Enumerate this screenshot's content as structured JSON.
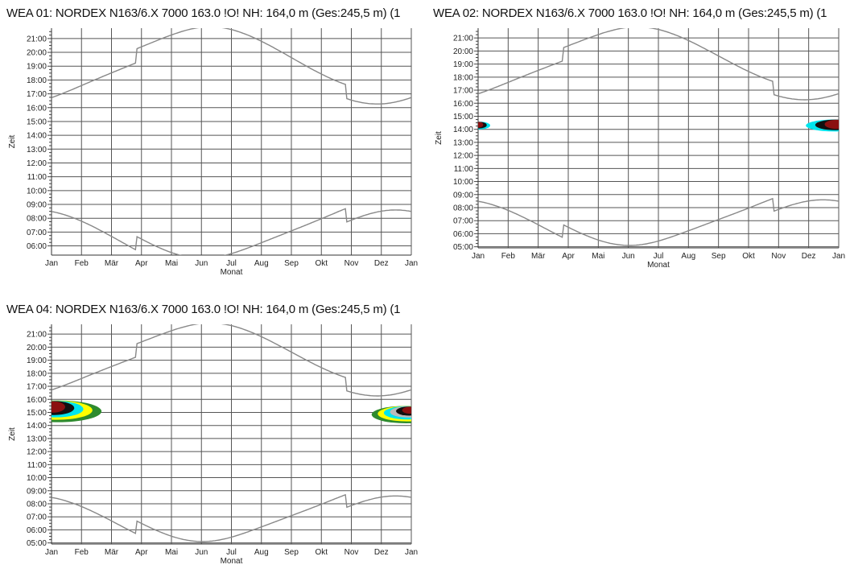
{
  "chart_data": [
    {
      "type": "area",
      "title": "WEA 01: NORDEX N163/6.X 7000 163.0 !O! NH: 164,0 m (Ges:245,5 m) (1",
      "xlabel": "Monat",
      "ylabel": "Zeit",
      "categories": [
        "Jan",
        "Feb",
        "Mär",
        "Apr",
        "Mai",
        "Jun",
        "Jul",
        "Aug",
        "Sep",
        "Okt",
        "Nov",
        "Dez",
        "Jan"
      ],
      "yticks": [
        "06:00",
        "07:00",
        "08:00",
        "09:00",
        "10:00",
        "11:00",
        "12:00",
        "13:00",
        "14:00",
        "15:00",
        "16:00",
        "17:00",
        "18:00",
        "19:00",
        "20:00",
        "21:00"
      ],
      "ylim": [
        "05:20",
        "21:45"
      ],
      "grid": true,
      "series": [],
      "shadow_periods": []
    },
    {
      "type": "area",
      "title": "WEA 02: NORDEX N163/6.X 7000 163.0 !O! NH: 164,0 m (Ges:245,5 m) (1",
      "xlabel": "Monat",
      "ylabel": "Zeit",
      "categories": [
        "Jan",
        "Feb",
        "Mär",
        "Apr",
        "Mai",
        "Jun",
        "Jul",
        "Aug",
        "Sep",
        "Okt",
        "Nov",
        "Dez",
        "Jan"
      ],
      "yticks": [
        "05:00",
        "06:00",
        "07:00",
        "08:00",
        "09:00",
        "10:00",
        "11:00",
        "12:00",
        "13:00",
        "14:00",
        "15:00",
        "16:00",
        "17:00",
        "18:00",
        "19:00",
        "20:00",
        "21:00"
      ],
      "ylim": [
        "04:55",
        "21:45"
      ],
      "grid": true,
      "series": [],
      "shadow_periods": [
        {
          "x_start": 0.0,
          "x_end": 0.35,
          "t_start": "14:00",
          "t_end": "14:35",
          "colors": [
            "#00e5ee",
            "#111111",
            "#8b1010"
          ]
        },
        {
          "x_start": 11.05,
          "x_end": 12.0,
          "t_start": "13:50",
          "t_end": "14:45",
          "colors": [
            "#00e5ee",
            "#111111",
            "#8b1010"
          ]
        }
      ]
    },
    {
      "type": "area",
      "title": "WEA 04: NORDEX N163/6.X 7000 163.0 !O! NH: 164,0 m (Ges:245,5 m) (1",
      "xlabel": "Monat",
      "ylabel": "Zeit",
      "categories": [
        "Jan",
        "Feb",
        "Mär",
        "Apr",
        "Mai",
        "Jun",
        "Jul",
        "Aug",
        "Sep",
        "Okt",
        "Nov",
        "Dez",
        "Jan"
      ],
      "yticks": [
        "05:00",
        "06:00",
        "07:00",
        "08:00",
        "09:00",
        "10:00",
        "11:00",
        "12:00",
        "13:00",
        "14:00",
        "15:00",
        "16:00",
        "17:00",
        "18:00",
        "19:00",
        "20:00",
        "21:00"
      ],
      "ylim": [
        "04:55",
        "21:45"
      ],
      "grid": true,
      "series": [],
      "shadow_periods": [
        {
          "x_start": 0.0,
          "x_end": 1.45,
          "t_start": "14:15",
          "t_end": "15:55",
          "colors": [
            "#2e8b2e",
            "#ffff00",
            "#00e5ee",
            "#111111",
            "#8b1010"
          ]
        },
        {
          "x_start": 10.85,
          "x_end": 12.0,
          "t_start": "14:10",
          "t_end": "15:30",
          "colors": [
            "#2e8b2e",
            "#ffff00",
            "#00e5ee",
            "#bbbbbb",
            "#111111",
            "#8b1010"
          ]
        }
      ]
    }
  ],
  "colors": {
    "grid": "#555555",
    "sun_curve": "#888888",
    "shadow_cyan": "#00e5ee",
    "shadow_green": "#2e8b2e",
    "shadow_yellow": "#ffff00",
    "shadow_gray": "#bbbbbb",
    "shadow_black": "#111111",
    "shadow_darkred": "#8b1010"
  }
}
